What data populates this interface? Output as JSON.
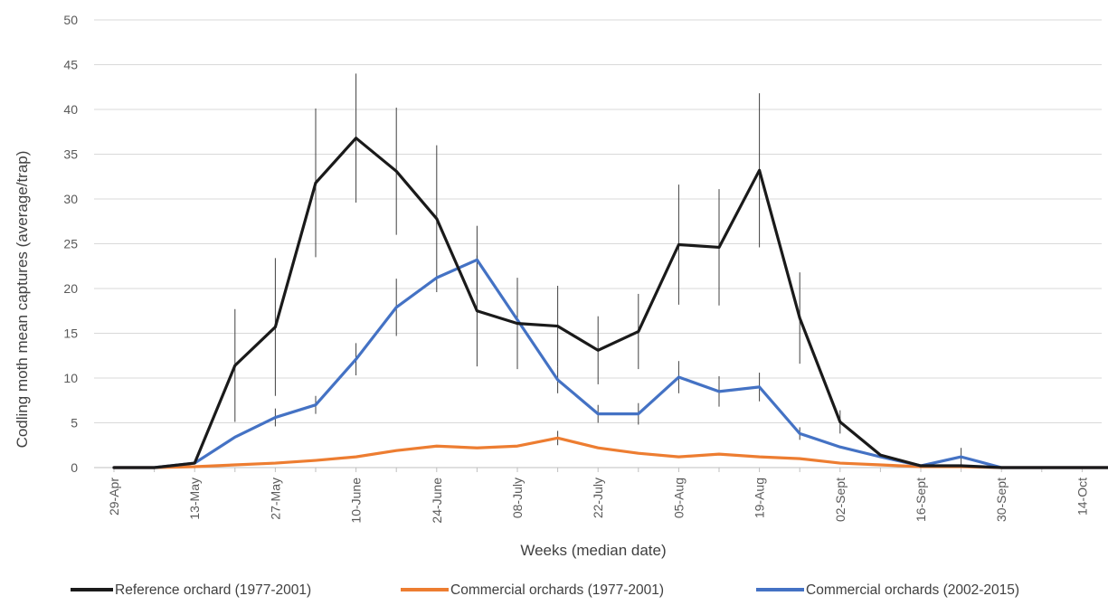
{
  "chart_data": {
    "type": "line",
    "title": "",
    "xlabel": "Weeks (median date)",
    "ylabel": "Codling moth mean captures (average/trap)",
    "ylim": [
      0,
      50
    ],
    "yticks": [
      0,
      5,
      10,
      15,
      20,
      25,
      30,
      35,
      40,
      45,
      50
    ],
    "x_tick_labels": [
      "29-Apr",
      "13-May",
      "27-May",
      "10-June",
      "24-June",
      "08-July",
      "22-July",
      "05-Aug",
      "19-Aug",
      "02-Sept",
      "16-Sept",
      "30-Sept",
      "14-Oct"
    ],
    "grid": true,
    "legend_position": "bottom",
    "series": [
      {
        "name": "Reference orchard (1977-2001)",
        "color": "#1a1a1a",
        "values": [
          0,
          0,
          0.5,
          11.4,
          15.7,
          31.8,
          36.8,
          33.1,
          27.8,
          17.5,
          16.1,
          15.8,
          13.1,
          15.2,
          24.9,
          24.6,
          33.2,
          16.7,
          5.1,
          1.4,
          0.2,
          0.2,
          0,
          0,
          0,
          0
        ],
        "error": [
          0,
          0,
          0,
          6.3,
          7.7,
          8.3,
          7.2,
          7.1,
          8.2,
          6.2,
          5.1,
          4.5,
          3.8,
          4.2,
          6.7,
          6.5,
          8.6,
          5.1,
          1.3,
          0,
          0,
          0,
          0,
          0,
          0,
          0
        ]
      },
      {
        "name": "Commercial orchards (1977-2001)",
        "color": "#ed7d31",
        "values": [
          0,
          0,
          0.1,
          0.3,
          0.5,
          0.8,
          1.2,
          1.9,
          2.4,
          2.2,
          2.4,
          3.3,
          2.2,
          1.6,
          1.2,
          1.5,
          1.2,
          1.0,
          0.5,
          0.3,
          0.1,
          0.1,
          0,
          0,
          0,
          0
        ],
        "error": [
          0,
          0,
          0,
          0,
          0,
          0,
          0,
          0,
          0,
          0,
          0,
          0.8,
          0,
          0,
          0,
          0,
          0,
          0,
          0,
          0,
          0,
          0,
          0,
          0,
          0,
          0
        ]
      },
      {
        "name": "Commercial orchards (2002-2015)",
        "color": "#4472c4",
        "values": [
          0,
          0,
          0.5,
          3.4,
          5.6,
          7.0,
          12.1,
          17.9,
          21.2,
          23.2,
          16.5,
          9.8,
          6.0,
          6.0,
          10.1,
          8.5,
          9.0,
          3.8,
          2.3,
          1.2,
          0.2,
          1.2,
          0,
          0,
          0,
          0
        ],
        "error": [
          0,
          0,
          0,
          0,
          1.0,
          1.0,
          1.8,
          3.2,
          0,
          3.8,
          0,
          1.5,
          1.0,
          1.2,
          1.8,
          1.7,
          1.6,
          0.7,
          0,
          0,
          0,
          1.0,
          0,
          0,
          0,
          0
        ]
      }
    ]
  }
}
